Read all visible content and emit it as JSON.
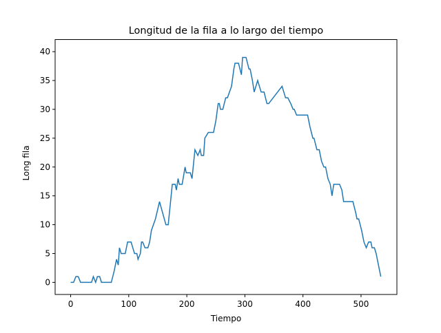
{
  "chart_data": {
    "type": "line",
    "title": "Longitud de la fila a lo largo del tiempo",
    "xlabel": "Tiempo",
    "ylabel": "Long fila",
    "x": [
      0,
      5,
      9,
      13,
      17,
      36,
      39,
      43,
      46,
      50,
      53,
      70,
      75,
      79,
      82,
      84,
      87,
      94,
      98,
      104,
      110,
      114,
      116,
      120,
      122,
      124,
      128,
      133,
      136,
      139,
      146,
      153,
      164,
      168,
      172,
      175,
      180,
      182,
      185,
      187,
      192,
      197,
      199,
      206,
      209,
      214,
      219,
      223,
      225,
      229,
      231,
      237,
      246,
      250,
      254,
      256,
      258,
      262,
      267,
      270,
      277,
      281,
      283,
      289,
      294,
      296,
      302,
      307,
      309,
      313,
      316,
      322,
      328,
      333,
      338,
      341,
      364,
      370,
      374,
      379,
      383,
      385,
      389,
      408,
      412,
      417,
      419,
      424,
      428,
      432,
      436,
      439,
      443,
      447,
      450,
      453,
      463,
      467,
      470,
      486,
      491,
      493,
      496,
      501,
      505,
      509,
      513,
      517,
      519,
      523,
      526,
      530,
      534
    ],
    "series": [
      {
        "name": "Long fila",
        "color": "#1f77b4",
        "values": [
          0,
          0,
          1,
          1,
          0,
          0,
          1,
          0,
          1,
          1,
          0,
          0,
          2,
          4,
          3,
          6,
          5,
          5,
          7,
          7,
          5,
          5,
          4,
          5,
          7,
          7,
          6,
          6,
          7,
          9,
          11,
          14,
          10,
          10,
          14,
          17,
          17,
          16,
          18,
          17,
          17,
          20,
          19,
          19,
          18,
          23,
          22,
          23,
          22,
          22,
          25,
          26,
          26,
          28,
          31,
          31,
          30,
          30,
          32,
          32,
          34,
          37,
          38,
          38,
          36,
          39,
          39,
          37,
          37,
          35,
          33,
          35,
          33,
          33,
          31,
          31,
          34,
          32,
          32,
          31,
          30,
          30,
          29,
          29,
          27,
          25,
          25,
          23,
          23,
          21,
          20,
          20,
          18,
          17,
          15,
          17,
          17,
          16,
          14,
          14,
          12,
          11,
          11,
          9,
          7,
          6,
          7,
          7,
          6,
          6,
          5,
          3,
          1
        ]
      }
    ],
    "xlim": [
      -26.75,
      561.75
    ],
    "ylim": [
      -2.1,
      42.1
    ],
    "xticks": [
      0,
      100,
      200,
      300,
      400,
      500
    ],
    "yticks": [
      0,
      5,
      10,
      15,
      20,
      25,
      30,
      35,
      40
    ]
  }
}
